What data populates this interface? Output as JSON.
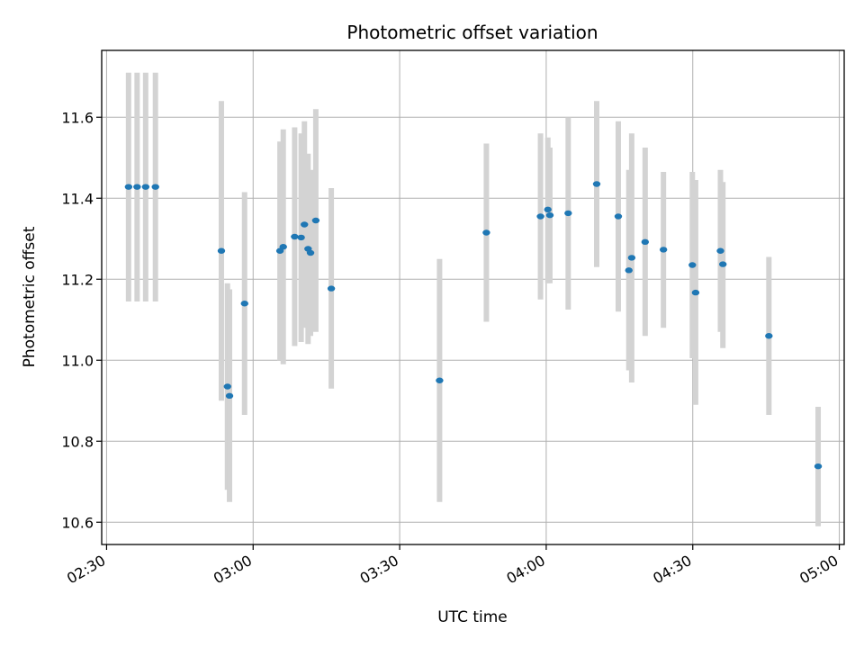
{
  "chart_data": {
    "type": "scatter",
    "title": "Photometric offset variation",
    "xlabel": "UTC time",
    "ylabel": "Photometric offset",
    "xlim": [
      "02:29:00",
      "05:01:00"
    ],
    "ylim": [
      10.545,
      11.765
    ],
    "x_ticks": [
      "02:30",
      "03:00",
      "03:30",
      "04:00",
      "04:30",
      "05:00"
    ],
    "y_ticks": [
      "10.6",
      "10.8",
      "11.0",
      "11.2",
      "11.4",
      "11.6"
    ],
    "grid": true,
    "marker_color": "#1f77b4",
    "errorbar_color": "#d3d3d3",
    "points": [
      {
        "t": "02:34:30",
        "y": 11.428,
        "lo": 11.145,
        "hi": 11.71
      },
      {
        "t": "02:36:15",
        "y": 11.428,
        "lo": 11.145,
        "hi": 11.71
      },
      {
        "t": "02:38:00",
        "y": 11.428,
        "lo": 11.145,
        "hi": 11.71
      },
      {
        "t": "02:40:00",
        "y": 11.428,
        "lo": 11.145,
        "hi": 11.71
      },
      {
        "t": "02:53:30",
        "y": 11.27,
        "lo": 10.9,
        "hi": 11.64
      },
      {
        "t": "02:54:45",
        "y": 10.935,
        "lo": 10.68,
        "hi": 11.19
      },
      {
        "t": "02:55:10",
        "y": 10.912,
        "lo": 10.65,
        "hi": 11.175
      },
      {
        "t": "02:58:15",
        "y": 11.14,
        "lo": 10.865,
        "hi": 11.415
      },
      {
        "t": "03:05:30",
        "y": 11.27,
        "lo": 11.0,
        "hi": 11.54
      },
      {
        "t": "03:06:10",
        "y": 11.28,
        "lo": 10.99,
        "hi": 11.57
      },
      {
        "t": "03:08:30",
        "y": 11.305,
        "lo": 11.035,
        "hi": 11.575
      },
      {
        "t": "03:09:50",
        "y": 11.303,
        "lo": 11.045,
        "hi": 11.56
      },
      {
        "t": "03:10:30",
        "y": 11.335,
        "lo": 11.08,
        "hi": 11.59
      },
      {
        "t": "03:11:15",
        "y": 11.275,
        "lo": 11.04,
        "hi": 11.51
      },
      {
        "t": "03:11:45",
        "y": 11.265,
        "lo": 11.06,
        "hi": 11.47
      },
      {
        "t": "03:12:50",
        "y": 11.345,
        "lo": 11.07,
        "hi": 11.62
      },
      {
        "t": "03:16:00",
        "y": 11.177,
        "lo": 10.93,
        "hi": 11.425
      },
      {
        "t": "03:38:10",
        "y": 10.95,
        "lo": 10.65,
        "hi": 11.25
      },
      {
        "t": "03:47:45",
        "y": 11.315,
        "lo": 11.095,
        "hi": 11.535
      },
      {
        "t": "03:58:50",
        "y": 11.355,
        "lo": 11.15,
        "hi": 11.56
      },
      {
        "t": "04:00:20",
        "y": 11.372,
        "lo": 11.19,
        "hi": 11.55
      },
      {
        "t": "04:00:45",
        "y": 11.358,
        "lo": 11.19,
        "hi": 11.525
      },
      {
        "t": "04:04:30",
        "y": 11.363,
        "lo": 11.125,
        "hi": 11.6
      },
      {
        "t": "04:10:20",
        "y": 11.435,
        "lo": 11.23,
        "hi": 11.64
      },
      {
        "t": "04:14:45",
        "y": 11.355,
        "lo": 11.12,
        "hi": 11.59
      },
      {
        "t": "04:16:55",
        "y": 11.222,
        "lo": 10.975,
        "hi": 11.47
      },
      {
        "t": "04:17:30",
        "y": 11.253,
        "lo": 10.945,
        "hi": 11.56
      },
      {
        "t": "04:20:15",
        "y": 11.292,
        "lo": 11.06,
        "hi": 11.525
      },
      {
        "t": "04:24:00",
        "y": 11.273,
        "lo": 11.08,
        "hi": 11.465
      },
      {
        "t": "04:29:55",
        "y": 11.235,
        "lo": 11.005,
        "hi": 11.465
      },
      {
        "t": "04:30:35",
        "y": 11.167,
        "lo": 10.89,
        "hi": 11.445
      },
      {
        "t": "04:35:40",
        "y": 11.27,
        "lo": 11.07,
        "hi": 11.47
      },
      {
        "t": "04:36:10",
        "y": 11.237,
        "lo": 11.03,
        "hi": 11.44
      },
      {
        "t": "04:45:35",
        "y": 11.06,
        "lo": 10.865,
        "hi": 11.255
      },
      {
        "t": "04:55:40",
        "y": 10.738,
        "lo": 10.59,
        "hi": 10.885
      }
    ]
  }
}
